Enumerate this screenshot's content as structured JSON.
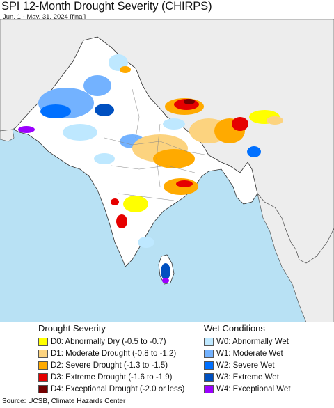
{
  "header": {
    "title": "SPI 12-Month Drought Severity (CHIRPS)",
    "subtitle": "Jun. 1 - May. 31, 2024 [final]"
  },
  "legend": {
    "drought": {
      "title": "Drought Severity",
      "items": [
        {
          "label": "D0: Abnormally Dry (-0.5 to -0.7)",
          "color": "#ffff00"
        },
        {
          "label": "D1: Moderate Drought (-0.8 to -1.2)",
          "color": "#fcd37f"
        },
        {
          "label": "D2: Severe Drought (-1.3 to -1.5)",
          "color": "#ffaa00"
        },
        {
          "label": "D3: Extreme Drought (-1.6 to -1.9)",
          "color": "#e60000"
        },
        {
          "label": "D4: Exceptional Drought (-2.0 or less)",
          "color": "#730000"
        }
      ]
    },
    "wet": {
      "title": "Wet Conditions",
      "items": [
        {
          "label": "W0: Abnormally Wet",
          "color": "#bee8ff"
        },
        {
          "label": "W1: Moderate Wet",
          "color": "#73b2ff"
        },
        {
          "label": "W2: Severe Wet",
          "color": "#0070ff"
        },
        {
          "label": "W3: Extreme Wet",
          "color": "#0050c0"
        },
        {
          "label": "W4: Exceptional Wet",
          "color": "#9b00ff"
        }
      ]
    }
  },
  "footer": {
    "source": "Source: UCSB, Climate Hazards Center"
  },
  "map": {
    "region": "South Asia",
    "ocean_color": "#b8e1f4",
    "land_color": "#ffffff",
    "outside_land_color": "#ededed"
  }
}
